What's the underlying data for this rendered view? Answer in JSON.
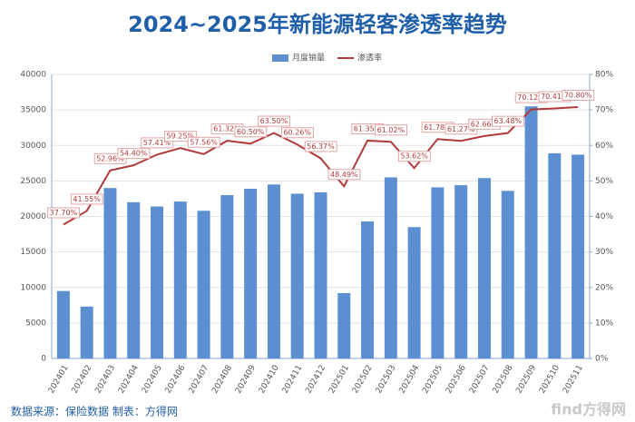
{
  "chart_data": {
    "type": "bar-line",
    "title": "2024~2025年新能源轻客渗透率趋势",
    "categories": [
      "202401",
      "202402",
      "202403",
      "202404",
      "202405",
      "202406",
      "202407",
      "202408",
      "202409",
      "202410",
      "202411",
      "202412",
      "202501",
      "202502",
      "202503",
      "202504",
      "202505",
      "202506",
      "202507",
      "202508",
      "202509",
      "202510",
      "202511"
    ],
    "series": [
      {
        "name": "月度销量",
        "color": "#5b8fd2",
        "type": "bar",
        "values": [
          9500,
          7300,
          24000,
          22000,
          21400,
          22100,
          20800,
          23000,
          23900,
          24500,
          23200,
          23400,
          9200,
          19300,
          25500,
          18500,
          24100,
          24400,
          25400,
          23600,
          35500,
          28900,
          28700
        ]
      },
      {
        "name": "渗透率",
        "color": "#b03a3a",
        "type": "line",
        "axis": "y2",
        "values": [
          37.7,
          41.55,
          52.96,
          54.4,
          57.41,
          59.25,
          57.56,
          61.32,
          60.5,
          63.5,
          60.26,
          56.37,
          48.49,
          61.35,
          61.02,
          53.62,
          61.78,
          61.27,
          62.66,
          63.48,
          70.12,
          70.41,
          70.8
        ],
        "value_labels": [
          "37.70%",
          "41.55%",
          "52.96%",
          "54.40%",
          "57.41%",
          "59.25%",
          "57.56%",
          "61.32%",
          "60.50%",
          "63.50%",
          "60.26%",
          "56.37%",
          "48.49%",
          "61.35%",
          "61.02%",
          "53.62%",
          "61.78%",
          "61.27%",
          "62.66%",
          "63.48%",
          "70.12%",
          "70.41%",
          "70.80%"
        ]
      }
    ],
    "ylim": [
      0,
      40000
    ],
    "yticks": [
      0,
      5000,
      10000,
      15000,
      20000,
      25000,
      30000,
      35000,
      40000
    ],
    "y2lim": [
      0,
      80
    ],
    "y2ticks": [
      {
        "value": 0,
        "label": "0%"
      },
      {
        "value": 10,
        "label": "10%"
      },
      {
        "value": 20,
        "label": "20%"
      },
      {
        "value": 30,
        "label": "30%"
      },
      {
        "value": 40,
        "label": "40%"
      },
      {
        "value": 50,
        "label": "50%"
      },
      {
        "value": 60,
        "label": "60%"
      },
      {
        "value": 70,
        "label": "70%"
      },
      {
        "value": 80,
        "label": "80%"
      }
    ],
    "grid": true,
    "legend": "top",
    "source": "数据来源：保险数据 制表：方得网",
    "watermark": "find方得网"
  }
}
